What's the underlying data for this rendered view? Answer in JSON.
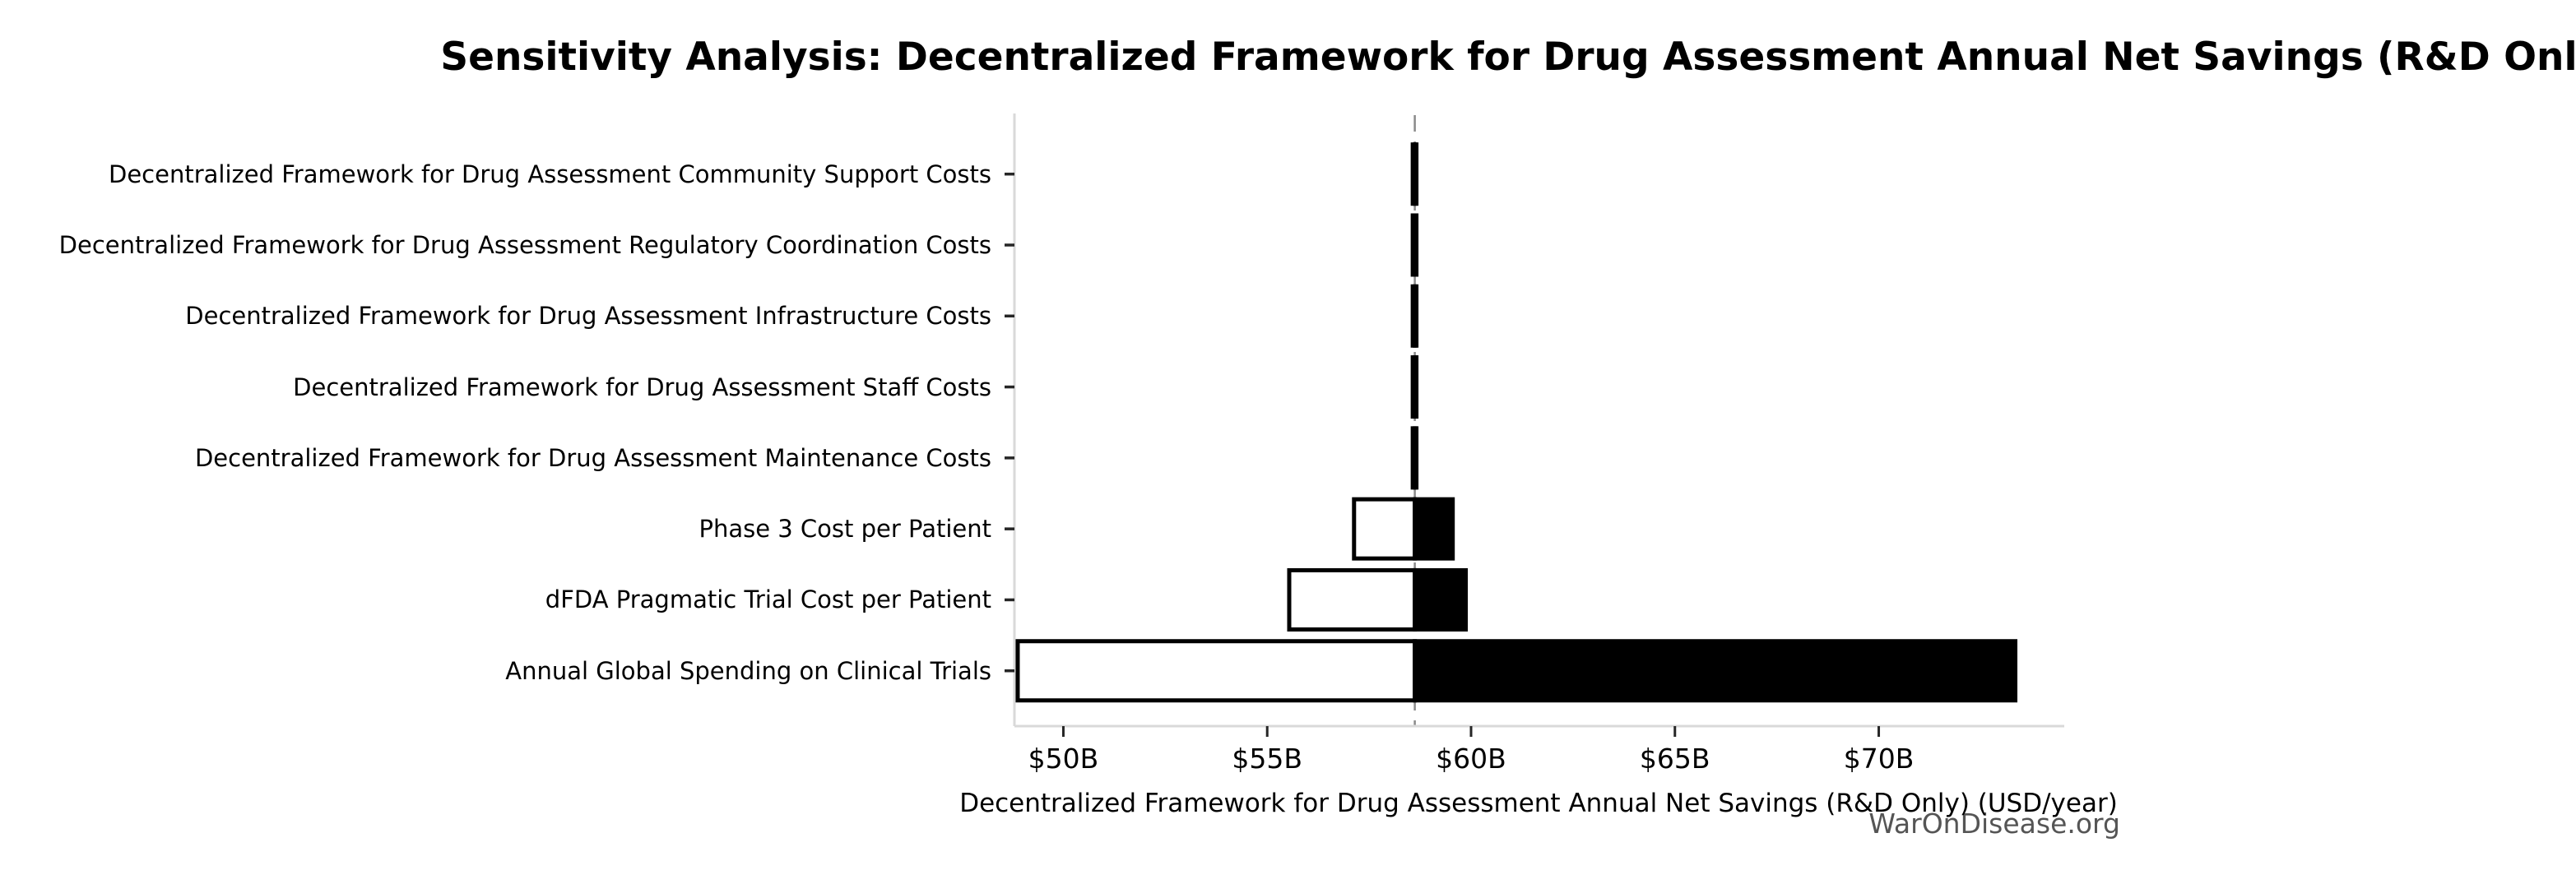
{
  "chart_data": {
    "type": "bar",
    "subtype": "tornado-sensitivity",
    "title": "Sensitivity Analysis: Decentralized Framework for Drug Assessment Annual Net Savings (R&D Only)",
    "xlabel": "Decentralized Framework for Drug Assessment Annual Net Savings (R&D Only) (USD/year)",
    "ylabel": "",
    "value_unit": "USD billions per year",
    "xlim": [
      48.8,
      74.55
    ],
    "baseline_value": 58.62,
    "grid": false,
    "legend": null,
    "xticks": [
      {
        "value": 50,
        "label": "$50B"
      },
      {
        "value": 55,
        "label": "$55B"
      },
      {
        "value": 60,
        "label": "$60B"
      },
      {
        "value": 65,
        "label": "$65B"
      },
      {
        "value": 70,
        "label": "$70B"
      }
    ],
    "rows": [
      {
        "label": "Decentralized Framework for Drug Assessment Community Support Costs",
        "low": 58.57,
        "high": 58.66
      },
      {
        "label": "Decentralized Framework for Drug Assessment Regulatory Coordination Costs",
        "low": 58.57,
        "high": 58.66
      },
      {
        "label": "Decentralized Framework for Drug Assessment Infrastructure Costs",
        "low": 58.57,
        "high": 58.66
      },
      {
        "label": "Decentralized Framework for Drug Assessment Staff Costs",
        "low": 58.57,
        "high": 58.66
      },
      {
        "label": "Decentralized Framework for Drug Assessment Maintenance Costs",
        "low": 58.57,
        "high": 58.66
      },
      {
        "label": "Phase 3 Cost per Patient",
        "low": 57.13,
        "high": 59.55
      },
      {
        "label": "dFDA Pragmatic Trial Cost per Patient",
        "low": 55.54,
        "high": 59.87
      },
      {
        "label": "Annual Global Spending on Clinical Trials",
        "low": 48.88,
        "high": 73.35
      }
    ],
    "annotations": {
      "watermark": "WarOnDisease.org"
    },
    "colors": {
      "low_fill": "#ffffff",
      "high_fill": "#000000",
      "bar_edge": "#000000",
      "spine": "#d9d9d9",
      "baseline_line": "#8a8a8a",
      "tick_mark": "#262626",
      "text": "#000000",
      "watermark": "#555555"
    }
  }
}
